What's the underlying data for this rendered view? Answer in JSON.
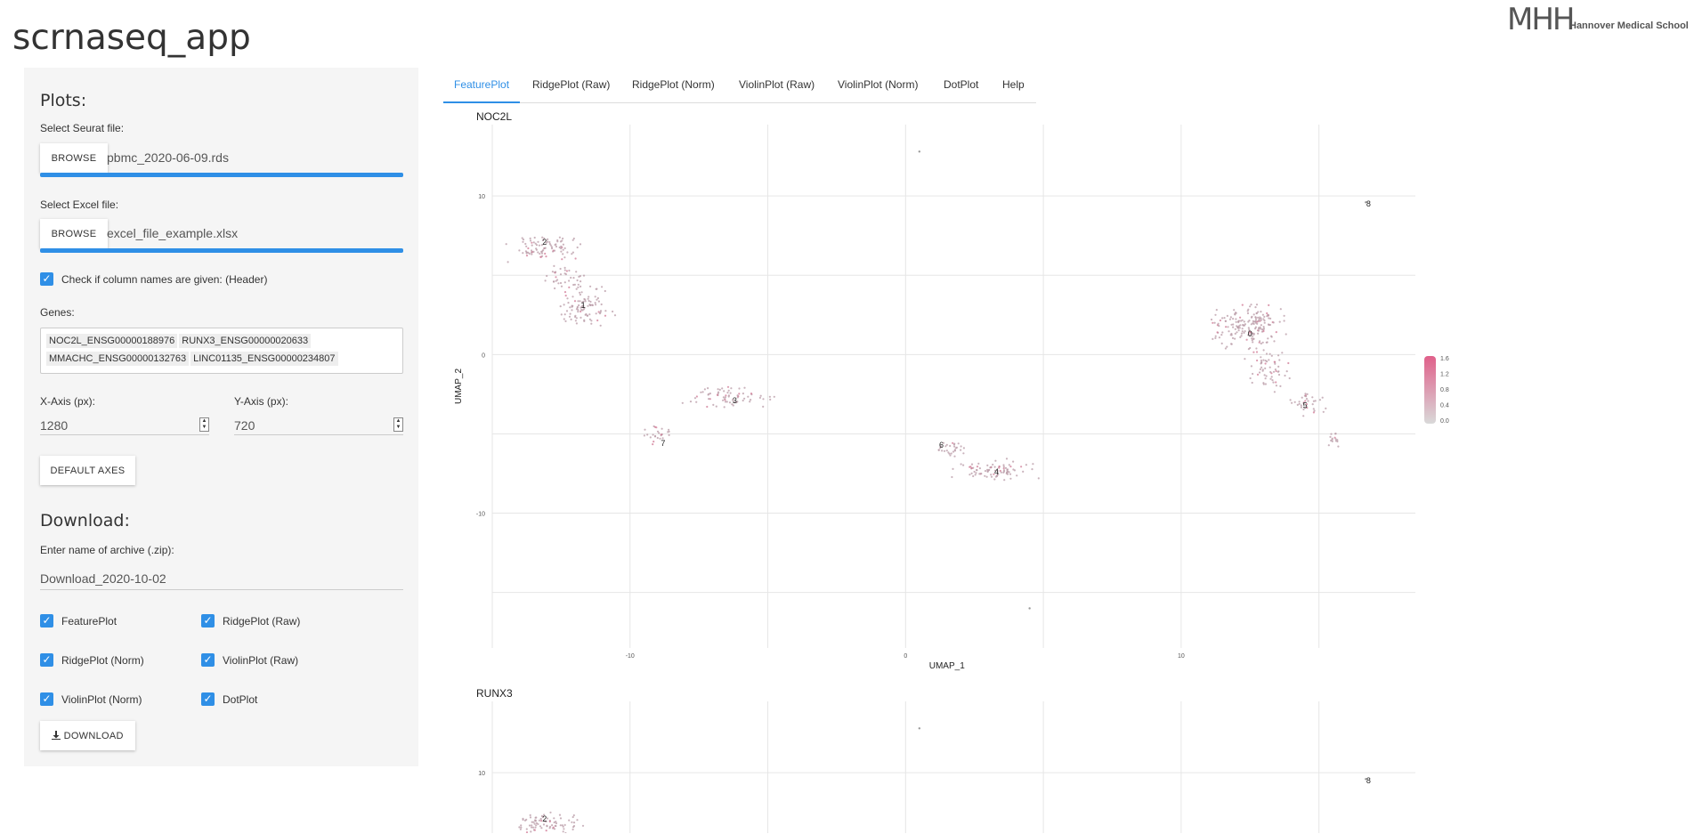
{
  "app": {
    "title": "scrnaseq_app"
  },
  "logo": {
    "mark": "MHH",
    "text": "Hannover Medical School"
  },
  "sidebar": {
    "plots_heading": "Plots:",
    "seurat": {
      "label": "Select Seurat file:",
      "button": "BROWSE",
      "filename": "pbmc_2020-06-09.rds",
      "progress": 1.0
    },
    "excel": {
      "label": "Select Excel file:",
      "button": "BROWSE",
      "filename": "excel_file_example.xlsx",
      "progress": 1.0
    },
    "header_checkbox": {
      "label": "Check if column names are given: (Header)",
      "checked": true
    },
    "genes": {
      "label": "Genes:",
      "items": [
        "NOC2L_ENSG00000188976",
        "RUNX3_ENSG00000020633",
        "MMACHC_ENSG00000132763",
        "LINC01135_ENSG00000234807"
      ]
    },
    "x_axis": {
      "label": "X-Axis (px):",
      "value": "1280"
    },
    "y_axis": {
      "label": "Y-Axis (px):",
      "value": "720"
    },
    "default_axes_button": "DEFAULT AXES",
    "download_heading": "Download:",
    "archive": {
      "label": "Enter name of archive (.zip):",
      "value": "Download_2020-10-02"
    },
    "download_options": [
      {
        "label": "FeaturePlot",
        "checked": true
      },
      {
        "label": "RidgePlot (Raw)",
        "checked": true
      },
      {
        "label": "RidgePlot (Norm)",
        "checked": true
      },
      {
        "label": "ViolinPlot (Raw)",
        "checked": true
      },
      {
        "label": "ViolinPlot (Norm)",
        "checked": true
      },
      {
        "label": "DotPlot",
        "checked": true
      }
    ],
    "download_button": "DOWNLOAD",
    "checkmark": "✓"
  },
  "tabs": [
    "FeaturePlot",
    "RidgePlot (Raw)",
    "RidgePlot (Norm)",
    "ViolinPlot (Raw)",
    "ViolinPlot (Norm)",
    "DotPlot",
    "Help"
  ],
  "active_tab": "FeaturePlot",
  "chart_data": [
    {
      "type": "scatter",
      "title": "NOC2L",
      "xlabel": "UMAP_1",
      "ylabel": "UMAP_2",
      "x_ticks": [
        -10,
        0,
        10
      ],
      "y_ticks": [
        10,
        0,
        -10
      ],
      "xlim": [
        -15,
        18.5
      ],
      "ylim": [
        -18.5,
        14.5
      ],
      "grid": true,
      "clusters": [
        {
          "label": "0",
          "x": 12.5,
          "y": 1.3
        },
        {
          "label": "1",
          "x": -11.7,
          "y": 3.1
        },
        {
          "label": "2",
          "x": -13.1,
          "y": 7.1
        },
        {
          "label": "3",
          "x": -6.2,
          "y": -2.9
        },
        {
          "label": "4",
          "x": 3.3,
          "y": -7.4
        },
        {
          "label": "5",
          "x": 14.5,
          "y": -3.2
        },
        {
          "label": "6",
          "x": 1.3,
          "y": -5.7
        },
        {
          "label": "7",
          "x": -8.8,
          "y": -5.6
        },
        {
          "label": "8",
          "x": 16.8,
          "y": 9.5
        }
      ],
      "colorbar": {
        "ticks": [
          "1.6",
          "1.2",
          "0.8",
          "0.4",
          "0.0"
        ],
        "low_color": "#d9d9d9",
        "high_color": "#e0608a"
      },
      "point_color": "#b89aa6"
    },
    {
      "type": "scatter",
      "title": "RUNX3",
      "xlabel": "UMAP_1",
      "ylabel": "UMAP_2",
      "y_ticks": [
        10
      ],
      "xlim": [
        -15,
        18.5
      ],
      "ylim": [
        -18.5,
        14.5
      ],
      "grid": true,
      "clusters": [
        {
          "label": "2",
          "x": -13.1,
          "y": 7.1
        },
        {
          "label": "8",
          "x": 16.8,
          "y": 9.5
        }
      ],
      "point_color": "#b89aa6"
    }
  ]
}
